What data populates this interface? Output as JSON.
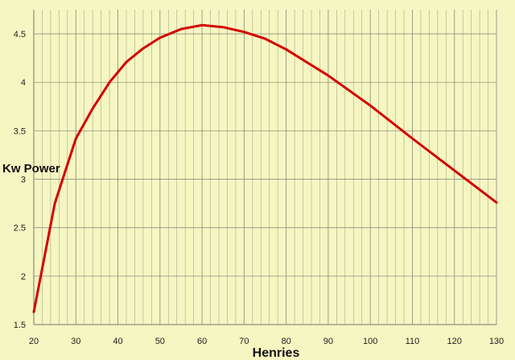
{
  "chart_data": {
    "type": "line",
    "xlabel": "Henries",
    "ylabel": "Kw Power",
    "xlim": [
      20,
      130
    ],
    "ylim": [
      1.5,
      4.75
    ],
    "x_ticks": [
      20,
      30,
      40,
      50,
      60,
      70,
      80,
      90,
      100,
      110,
      120,
      130
    ],
    "y_ticks": [
      1.5,
      2,
      2.5,
      3,
      3.5,
      4,
      4.5
    ],
    "x_minor_step": 2,
    "grid": true,
    "line_color": "#d40000",
    "background": "#f5f6c1",
    "grid_color": "#8a8a7a",
    "series": [
      {
        "x": [
          20,
          25,
          30,
          34,
          38,
          42,
          46,
          50,
          55,
          60,
          65,
          70,
          75,
          80,
          90,
          100,
          110,
          120,
          130
        ],
        "values": [
          1.63,
          2.75,
          3.42,
          3.73,
          4.0,
          4.21,
          4.35,
          4.46,
          4.55,
          4.59,
          4.57,
          4.52,
          4.45,
          4.34,
          4.07,
          3.76,
          3.42,
          3.09,
          2.76
        ]
      }
    ]
  }
}
